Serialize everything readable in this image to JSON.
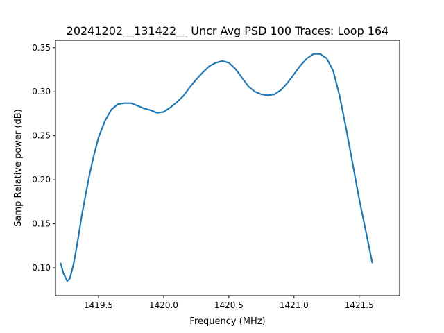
{
  "chart_data": {
    "type": "line",
    "title": "20241202__131422__  Uncr Avg PSD 100 Traces: Loop 164",
    "xlabel": "Frequency (MHz)",
    "ylabel": "Samp Relative power (dB)",
    "xlim": [
      1419.17,
      1421.81
    ],
    "ylim": [
      0.0685,
      0.3585
    ],
    "x_ticks": [
      1419.5,
      1420.0,
      1420.5,
      1421.0,
      1421.5
    ],
    "x_tick_labels": [
      "1419.5",
      "1420.0",
      "1420.5",
      "1421.0",
      "1421.5"
    ],
    "y_ticks": [
      0.1,
      0.15,
      0.2,
      0.25,
      0.3,
      0.35
    ],
    "y_tick_labels": [
      "0.10",
      "0.15",
      "0.20",
      "0.25",
      "0.30",
      "0.35"
    ],
    "grid": false,
    "legend": "none",
    "series": [
      {
        "color": "#1f77b4",
        "x": [
          1419.21,
          1419.23,
          1419.26,
          1419.28,
          1419.31,
          1419.34,
          1419.37,
          1419.4,
          1419.43,
          1419.46,
          1419.5,
          1419.55,
          1419.6,
          1419.65,
          1419.7,
          1419.75,
          1419.8,
          1419.85,
          1419.9,
          1419.95,
          1420.0,
          1420.05,
          1420.1,
          1420.15,
          1420.2,
          1420.25,
          1420.3,
          1420.35,
          1420.4,
          1420.45,
          1420.5,
          1420.55,
          1420.6,
          1420.65,
          1420.7,
          1420.75,
          1420.8,
          1420.85,
          1420.9,
          1420.95,
          1421.0,
          1421.05,
          1421.1,
          1421.15,
          1421.2,
          1421.25,
          1421.3,
          1421.35,
          1421.4,
          1421.45,
          1421.5,
          1421.55,
          1421.6
        ],
        "y": [
          0.105,
          0.094,
          0.085,
          0.088,
          0.105,
          0.13,
          0.158,
          0.182,
          0.205,
          0.225,
          0.248,
          0.267,
          0.28,
          0.286,
          0.287,
          0.287,
          0.284,
          0.281,
          0.279,
          0.276,
          0.277,
          0.282,
          0.288,
          0.295,
          0.305,
          0.314,
          0.322,
          0.329,
          0.333,
          0.335,
          0.333,
          0.326,
          0.316,
          0.306,
          0.3,
          0.297,
          0.296,
          0.297,
          0.302,
          0.31,
          0.32,
          0.33,
          0.338,
          0.343,
          0.343,
          0.338,
          0.324,
          0.295,
          0.258,
          0.218,
          0.178,
          0.142,
          0.106
        ]
      }
    ]
  }
}
